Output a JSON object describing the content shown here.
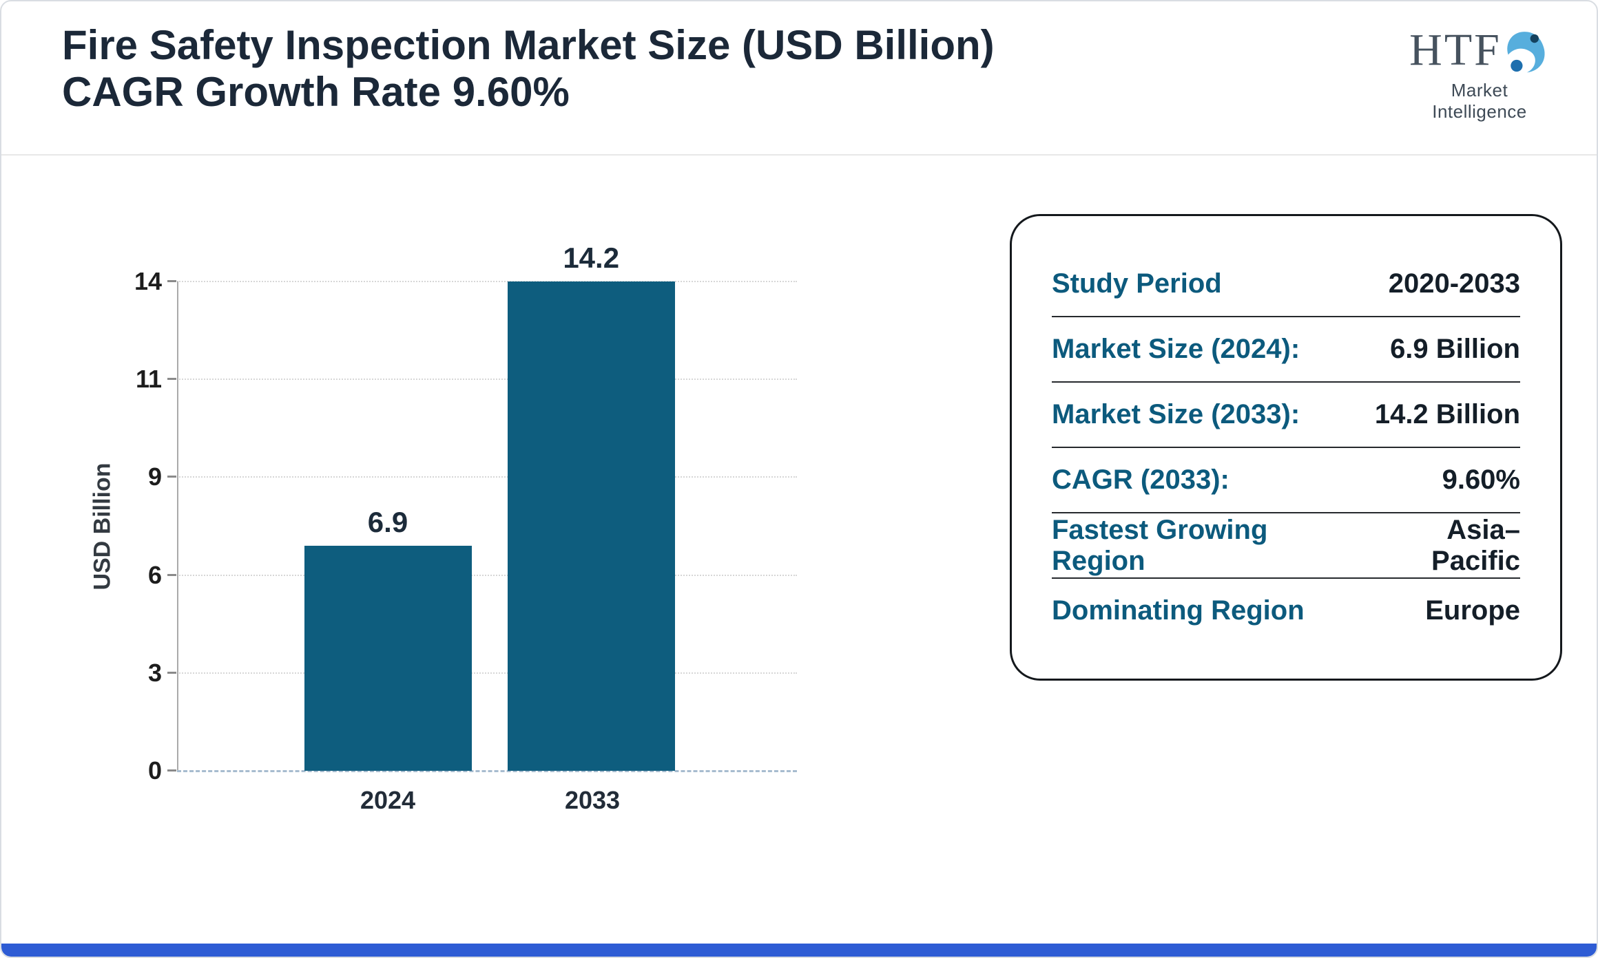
{
  "header": {
    "title_line1": "Fire Safety Inspection Market Size (USD Billion)",
    "title_line2": "CAGR Growth Rate 9.60%"
  },
  "logo": {
    "text": "HTF",
    "subtext": "Market Intelligence"
  },
  "chart_data": {
    "type": "bar",
    "title": "Fire Safety Inspection Market Size (USD Billion) — CAGR Growth Rate 9.60%",
    "categories": [
      "2024",
      "2033"
    ],
    "values": [
      6.9,
      14.2
    ],
    "ylabel": "USD Billion",
    "yticks": [
      0,
      3,
      6,
      9,
      11,
      14
    ],
    "ylim": [
      0,
      14
    ],
    "grid": "horizontal-dotted",
    "legend": "none",
    "bar_color": "#0e5d7e"
  },
  "info_card": {
    "rows": [
      {
        "label": "Study Period",
        "value": "2020-2033"
      },
      {
        "label": "Market Size (2024):",
        "value": "6.9 Billion"
      },
      {
        "label": "Market Size (2033):",
        "value": "14.2 Billion"
      },
      {
        "label": "CAGR (2033):",
        "value": "9.60%"
      },
      {
        "label": "Fastest Growing Region",
        "value": "Asia–Pacific"
      },
      {
        "label": "Dominating Region",
        "value": "Europe"
      }
    ]
  },
  "colors": {
    "bar_teal": "#0e5d7e",
    "label_teal": "#0c5a7d",
    "title_navy": "#1b2838",
    "footer_blue": "#2e5cd4"
  }
}
